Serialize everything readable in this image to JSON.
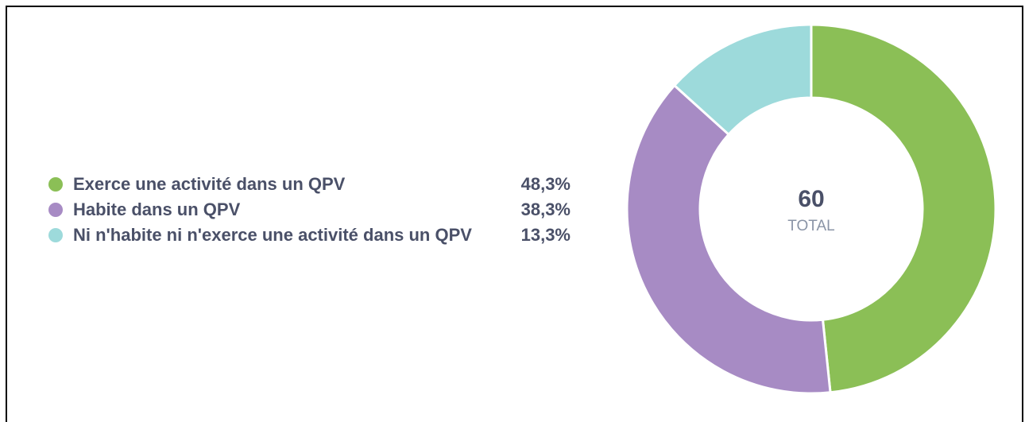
{
  "chart_data": {
    "type": "pie",
    "donut": true,
    "categories": [
      "Exerce une activité dans un QPV",
      "Habite dans un QPV",
      "Ni n'habite ni n'exerce une activité dans un QPV"
    ],
    "values": [
      48.3,
      38.3,
      13.3
    ],
    "value_labels": [
      "48,3%",
      "38,3%",
      "13,3%"
    ],
    "colors": [
      "#8bbf56",
      "#a78bc4",
      "#9ddadb"
    ],
    "total": 60,
    "total_label": "TOTAL"
  }
}
